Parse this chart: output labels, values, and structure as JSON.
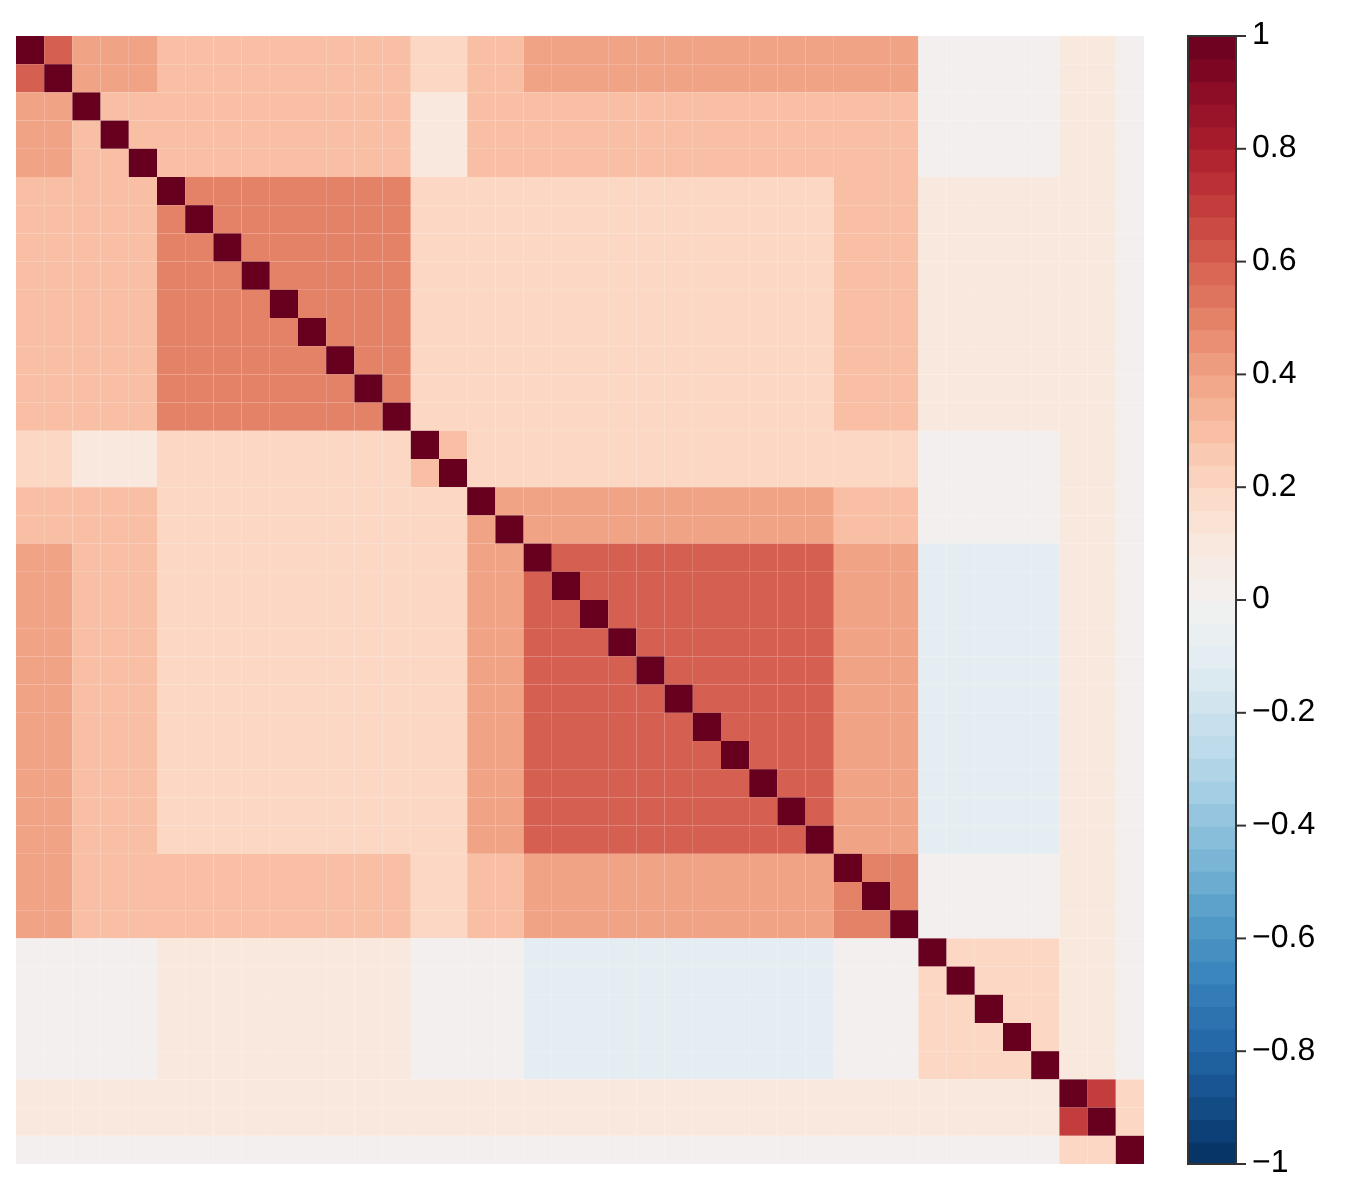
{
  "chart_data": {
    "type": "heatmap",
    "categories": [
      null,
      null,
      null,
      null,
      null,
      null,
      null,
      null,
      null,
      null,
      null,
      null,
      null,
      null,
      null,
      null,
      null,
      null,
      null,
      null,
      null,
      null,
      null,
      null,
      null,
      null,
      null,
      null,
      null,
      null,
      null,
      null,
      null,
      null,
      null,
      null,
      null,
      null,
      null,
      null
    ],
    "y_categories": [
      null,
      null,
      null,
      null,
      null,
      null,
      null,
      null,
      null,
      null,
      null,
      null,
      null,
      null,
      null,
      null,
      null,
      null,
      null,
      null,
      null,
      null,
      null,
      null,
      null,
      null,
      null,
      null,
      null,
      null,
      null,
      null,
      null,
      null,
      null,
      null,
      null,
      null,
      null,
      null
    ],
    "clim": [
      -1,
      1
    ],
    "cticks": [
      1,
      0.8,
      0.6,
      0.4,
      0.2,
      0,
      {
        "value": -0.2,
        "label": "−0.2"
      },
      {
        "value": -0.4,
        "label": "−0.4"
      },
      {
        "value": -0.6,
        "label": "−0.6"
      },
      {
        "value": -0.8,
        "label": "−0.8"
      },
      {
        "value": -1,
        "label": "−1"
      }
    ],
    "cells": [
      [
        1,
        0.6,
        0.4,
        0.4,
        0.4,
        0.3,
        0.3,
        0.3,
        0.3,
        0.3,
        0.3,
        0.3,
        0.3,
        0.3,
        0.2,
        0.2,
        0.3,
        0.3,
        0.4,
        0.4,
        0.4,
        0.4,
        0.4,
        0.4,
        0.4,
        0.4,
        0.4,
        0.4,
        0.4,
        0.4,
        0.4,
        0.4,
        0,
        0,
        0,
        0,
        0,
        0.1,
        0.1,
        0
      ],
      [
        0.6,
        1,
        0.4,
        0.4,
        0.4,
        0.3,
        0.3,
        0.3,
        0.3,
        0.3,
        0.3,
        0.3,
        0.3,
        0.3,
        0.2,
        0.2,
        0.3,
        0.3,
        0.4,
        0.4,
        0.4,
        0.4,
        0.4,
        0.4,
        0.4,
        0.4,
        0.4,
        0.4,
        0.4,
        0.4,
        0.4,
        0.4,
        0,
        0,
        0,
        0,
        0,
        0.1,
        0.1,
        0
      ],
      [
        0.4,
        0.4,
        1,
        0.3,
        0.3,
        0.3,
        0.3,
        0.3,
        0.3,
        0.3,
        0.3,
        0.3,
        0.3,
        0.3,
        0.1,
        0.1,
        0.3,
        0.3,
        0.3,
        0.3,
        0.3,
        0.3,
        0.3,
        0.3,
        0.3,
        0.3,
        0.3,
        0.3,
        0.3,
        0.3,
        0.3,
        0.3,
        0,
        0,
        0,
        0,
        0,
        0.1,
        0.1,
        0
      ],
      [
        0.4,
        0.4,
        0.3,
        1,
        0.3,
        0.3,
        0.3,
        0.3,
        0.3,
        0.3,
        0.3,
        0.3,
        0.3,
        0.3,
        0.1,
        0.1,
        0.3,
        0.3,
        0.3,
        0.3,
        0.3,
        0.3,
        0.3,
        0.3,
        0.3,
        0.3,
        0.3,
        0.3,
        0.3,
        0.3,
        0.3,
        0.3,
        0,
        0,
        0,
        0,
        0,
        0.1,
        0.1,
        0
      ],
      [
        0.4,
        0.4,
        0.3,
        0.3,
        1,
        0.3,
        0.3,
        0.3,
        0.3,
        0.3,
        0.3,
        0.3,
        0.3,
        0.3,
        0.1,
        0.1,
        0.3,
        0.3,
        0.3,
        0.3,
        0.3,
        0.3,
        0.3,
        0.3,
        0.3,
        0.3,
        0.3,
        0.3,
        0.3,
        0.3,
        0.3,
        0.3,
        0,
        0,
        0,
        0,
        0,
        0.1,
        0.1,
        0
      ],
      [
        0.3,
        0.3,
        0.3,
        0.3,
        0.3,
        1,
        0.5,
        0.5,
        0.5,
        0.5,
        0.5,
        0.5,
        0.5,
        0.5,
        0.2,
        0.2,
        0.2,
        0.2,
        0.2,
        0.2,
        0.2,
        0.2,
        0.2,
        0.2,
        0.2,
        0.2,
        0.2,
        0.2,
        0.2,
        0.3,
        0.3,
        0.3,
        0.1,
        0.1,
        0.1,
        0.1,
        0.1,
        0.1,
        0.1,
        0
      ],
      [
        0.3,
        0.3,
        0.3,
        0.3,
        0.3,
        0.5,
        1,
        0.5,
        0.5,
        0.5,
        0.5,
        0.5,
        0.5,
        0.5,
        0.2,
        0.2,
        0.2,
        0.2,
        0.2,
        0.2,
        0.2,
        0.2,
        0.2,
        0.2,
        0.2,
        0.2,
        0.2,
        0.2,
        0.2,
        0.3,
        0.3,
        0.3,
        0.1,
        0.1,
        0.1,
        0.1,
        0.1,
        0.1,
        0.1,
        0
      ],
      [
        0.3,
        0.3,
        0.3,
        0.3,
        0.3,
        0.5,
        0.5,
        1,
        0.5,
        0.5,
        0.5,
        0.5,
        0.5,
        0.5,
        0.2,
        0.2,
        0.2,
        0.2,
        0.2,
        0.2,
        0.2,
        0.2,
        0.2,
        0.2,
        0.2,
        0.2,
        0.2,
        0.2,
        0.2,
        0.3,
        0.3,
        0.3,
        0.1,
        0.1,
        0.1,
        0.1,
        0.1,
        0.1,
        0.1,
        0
      ],
      [
        0.3,
        0.3,
        0.3,
        0.3,
        0.3,
        0.5,
        0.5,
        0.5,
        1,
        0.5,
        0.5,
        0.5,
        0.5,
        0.5,
        0.2,
        0.2,
        0.2,
        0.2,
        0.2,
        0.2,
        0.2,
        0.2,
        0.2,
        0.2,
        0.2,
        0.2,
        0.2,
        0.2,
        0.2,
        0.3,
        0.3,
        0.3,
        0.1,
        0.1,
        0.1,
        0.1,
        0.1,
        0.1,
        0.1,
        0
      ],
      [
        0.3,
        0.3,
        0.3,
        0.3,
        0.3,
        0.5,
        0.5,
        0.5,
        0.5,
        1,
        0.5,
        0.5,
        0.5,
        0.5,
        0.2,
        0.2,
        0.2,
        0.2,
        0.2,
        0.2,
        0.2,
        0.2,
        0.2,
        0.2,
        0.2,
        0.2,
        0.2,
        0.2,
        0.2,
        0.3,
        0.3,
        0.3,
        0.1,
        0.1,
        0.1,
        0.1,
        0.1,
        0.1,
        0.1,
        0
      ],
      [
        0.3,
        0.3,
        0.3,
        0.3,
        0.3,
        0.5,
        0.5,
        0.5,
        0.5,
        0.5,
        1,
        0.5,
        0.5,
        0.5,
        0.2,
        0.2,
        0.2,
        0.2,
        0.2,
        0.2,
        0.2,
        0.2,
        0.2,
        0.2,
        0.2,
        0.2,
        0.2,
        0.2,
        0.2,
        0.3,
        0.3,
        0.3,
        0.1,
        0.1,
        0.1,
        0.1,
        0.1,
        0.1,
        0.1,
        0
      ],
      [
        0.3,
        0.3,
        0.3,
        0.3,
        0.3,
        0.5,
        0.5,
        0.5,
        0.5,
        0.5,
        0.5,
        1,
        0.5,
        0.5,
        0.2,
        0.2,
        0.2,
        0.2,
        0.2,
        0.2,
        0.2,
        0.2,
        0.2,
        0.2,
        0.2,
        0.2,
        0.2,
        0.2,
        0.2,
        0.3,
        0.3,
        0.3,
        0.1,
        0.1,
        0.1,
        0.1,
        0.1,
        0.1,
        0.1,
        0
      ],
      [
        0.3,
        0.3,
        0.3,
        0.3,
        0.3,
        0.5,
        0.5,
        0.5,
        0.5,
        0.5,
        0.5,
        0.5,
        1,
        0.5,
        0.2,
        0.2,
        0.2,
        0.2,
        0.2,
        0.2,
        0.2,
        0.2,
        0.2,
        0.2,
        0.2,
        0.2,
        0.2,
        0.2,
        0.2,
        0.3,
        0.3,
        0.3,
        0.1,
        0.1,
        0.1,
        0.1,
        0.1,
        0.1,
        0.1,
        0
      ],
      [
        0.3,
        0.3,
        0.3,
        0.3,
        0.3,
        0.5,
        0.5,
        0.5,
        0.5,
        0.5,
        0.5,
        0.5,
        0.5,
        1,
        0.2,
        0.2,
        0.2,
        0.2,
        0.2,
        0.2,
        0.2,
        0.2,
        0.2,
        0.2,
        0.2,
        0.2,
        0.2,
        0.2,
        0.2,
        0.3,
        0.3,
        0.3,
        0.1,
        0.1,
        0.1,
        0.1,
        0.1,
        0.1,
        0.1,
        0
      ],
      [
        0.2,
        0.2,
        0.1,
        0.1,
        0.1,
        0.2,
        0.2,
        0.2,
        0.2,
        0.2,
        0.2,
        0.2,
        0.2,
        0.2,
        1,
        0.3,
        0.2,
        0.2,
        0.2,
        0.2,
        0.2,
        0.2,
        0.2,
        0.2,
        0.2,
        0.2,
        0.2,
        0.2,
        0.2,
        0.2,
        0.2,
        0.2,
        0,
        0,
        0,
        0,
        0,
        0.1,
        0.1,
        0
      ],
      [
        0.2,
        0.2,
        0.1,
        0.1,
        0.1,
        0.2,
        0.2,
        0.2,
        0.2,
        0.2,
        0.2,
        0.2,
        0.2,
        0.2,
        0.3,
        1,
        0.2,
        0.2,
        0.2,
        0.2,
        0.2,
        0.2,
        0.2,
        0.2,
        0.2,
        0.2,
        0.2,
        0.2,
        0.2,
        0.2,
        0.2,
        0.2,
        0,
        0,
        0,
        0,
        0,
        0.1,
        0.1,
        0
      ],
      [
        0.3,
        0.3,
        0.3,
        0.3,
        0.3,
        0.2,
        0.2,
        0.2,
        0.2,
        0.2,
        0.2,
        0.2,
        0.2,
        0.2,
        0.2,
        0.2,
        1,
        0.4,
        0.4,
        0.4,
        0.4,
        0.4,
        0.4,
        0.4,
        0.4,
        0.4,
        0.4,
        0.4,
        0.4,
        0.3,
        0.3,
        0.3,
        0,
        0,
        0,
        0,
        0,
        0.1,
        0.1,
        0
      ],
      [
        0.3,
        0.3,
        0.3,
        0.3,
        0.3,
        0.2,
        0.2,
        0.2,
        0.2,
        0.2,
        0.2,
        0.2,
        0.2,
        0.2,
        0.2,
        0.2,
        0.4,
        1,
        0.4,
        0.4,
        0.4,
        0.4,
        0.4,
        0.4,
        0.4,
        0.4,
        0.4,
        0.4,
        0.4,
        0.3,
        0.3,
        0.3,
        0,
        0,
        0,
        0,
        0,
        0.1,
        0.1,
        0
      ],
      [
        0.4,
        0.4,
        0.3,
        0.3,
        0.3,
        0.2,
        0.2,
        0.2,
        0.2,
        0.2,
        0.2,
        0.2,
        0.2,
        0.2,
        0.2,
        0.2,
        0.4,
        0.4,
        1,
        0.6,
        0.6,
        0.6,
        0.6,
        0.6,
        0.6,
        0.6,
        0.6,
        0.6,
        0.6,
        0.4,
        0.4,
        0.4,
        -0.1,
        -0.1,
        -0.1,
        -0.1,
        -0.1,
        0.1,
        0.1,
        0
      ],
      [
        0.4,
        0.4,
        0.3,
        0.3,
        0.3,
        0.2,
        0.2,
        0.2,
        0.2,
        0.2,
        0.2,
        0.2,
        0.2,
        0.2,
        0.2,
        0.2,
        0.4,
        0.4,
        0.6,
        1,
        0.6,
        0.6,
        0.6,
        0.6,
        0.6,
        0.6,
        0.6,
        0.6,
        0.6,
        0.4,
        0.4,
        0.4,
        -0.1,
        -0.1,
        -0.1,
        -0.1,
        -0.1,
        0.1,
        0.1,
        0
      ],
      [
        0.4,
        0.4,
        0.3,
        0.3,
        0.3,
        0.2,
        0.2,
        0.2,
        0.2,
        0.2,
        0.2,
        0.2,
        0.2,
        0.2,
        0.2,
        0.2,
        0.4,
        0.4,
        0.6,
        0.6,
        1,
        0.6,
        0.6,
        0.6,
        0.6,
        0.6,
        0.6,
        0.6,
        0.6,
        0.4,
        0.4,
        0.4,
        -0.1,
        -0.1,
        -0.1,
        -0.1,
        -0.1,
        0.1,
        0.1,
        0
      ],
      [
        0.4,
        0.4,
        0.3,
        0.3,
        0.3,
        0.2,
        0.2,
        0.2,
        0.2,
        0.2,
        0.2,
        0.2,
        0.2,
        0.2,
        0.2,
        0.2,
        0.4,
        0.4,
        0.6,
        0.6,
        0.6,
        1,
        0.6,
        0.6,
        0.6,
        0.6,
        0.6,
        0.6,
        0.6,
        0.4,
        0.4,
        0.4,
        -0.1,
        -0.1,
        -0.1,
        -0.1,
        -0.1,
        0.1,
        0.1,
        0
      ],
      [
        0.4,
        0.4,
        0.3,
        0.3,
        0.3,
        0.2,
        0.2,
        0.2,
        0.2,
        0.2,
        0.2,
        0.2,
        0.2,
        0.2,
        0.2,
        0.2,
        0.4,
        0.4,
        0.6,
        0.6,
        0.6,
        0.6,
        1,
        0.6,
        0.6,
        0.6,
        0.6,
        0.6,
        0.6,
        0.4,
        0.4,
        0.4,
        -0.1,
        -0.1,
        -0.1,
        -0.1,
        -0.1,
        0.1,
        0.1,
        0
      ],
      [
        0.4,
        0.4,
        0.3,
        0.3,
        0.3,
        0.2,
        0.2,
        0.2,
        0.2,
        0.2,
        0.2,
        0.2,
        0.2,
        0.2,
        0.2,
        0.2,
        0.4,
        0.4,
        0.6,
        0.6,
        0.6,
        0.6,
        0.6,
        1,
        0.6,
        0.6,
        0.6,
        0.6,
        0.6,
        0.4,
        0.4,
        0.4,
        -0.1,
        -0.1,
        -0.1,
        -0.1,
        -0.1,
        0.1,
        0.1,
        0
      ],
      [
        0.4,
        0.4,
        0.3,
        0.3,
        0.3,
        0.2,
        0.2,
        0.2,
        0.2,
        0.2,
        0.2,
        0.2,
        0.2,
        0.2,
        0.2,
        0.2,
        0.4,
        0.4,
        0.6,
        0.6,
        0.6,
        0.6,
        0.6,
        0.6,
        1,
        0.6,
        0.6,
        0.6,
        0.6,
        0.4,
        0.4,
        0.4,
        -0.1,
        -0.1,
        -0.1,
        -0.1,
        -0.1,
        0.1,
        0.1,
        0
      ],
      [
        0.4,
        0.4,
        0.3,
        0.3,
        0.3,
        0.2,
        0.2,
        0.2,
        0.2,
        0.2,
        0.2,
        0.2,
        0.2,
        0.2,
        0.2,
        0.2,
        0.4,
        0.4,
        0.6,
        0.6,
        0.6,
        0.6,
        0.6,
        0.6,
        0.6,
        1,
        0.6,
        0.6,
        0.6,
        0.4,
        0.4,
        0.4,
        -0.1,
        -0.1,
        -0.1,
        -0.1,
        -0.1,
        0.1,
        0.1,
        0
      ],
      [
        0.4,
        0.4,
        0.3,
        0.3,
        0.3,
        0.2,
        0.2,
        0.2,
        0.2,
        0.2,
        0.2,
        0.2,
        0.2,
        0.2,
        0.2,
        0.2,
        0.4,
        0.4,
        0.6,
        0.6,
        0.6,
        0.6,
        0.6,
        0.6,
        0.6,
        0.6,
        1,
        0.6,
        0.6,
        0.4,
        0.4,
        0.4,
        -0.1,
        -0.1,
        -0.1,
        -0.1,
        -0.1,
        0.1,
        0.1,
        0
      ],
      [
        0.4,
        0.4,
        0.3,
        0.3,
        0.3,
        0.2,
        0.2,
        0.2,
        0.2,
        0.2,
        0.2,
        0.2,
        0.2,
        0.2,
        0.2,
        0.2,
        0.4,
        0.4,
        0.6,
        0.6,
        0.6,
        0.6,
        0.6,
        0.6,
        0.6,
        0.6,
        0.6,
        1,
        0.6,
        0.4,
        0.4,
        0.4,
        -0.1,
        -0.1,
        -0.1,
        -0.1,
        -0.1,
        0.1,
        0.1,
        0
      ],
      [
        0.4,
        0.4,
        0.3,
        0.3,
        0.3,
        0.2,
        0.2,
        0.2,
        0.2,
        0.2,
        0.2,
        0.2,
        0.2,
        0.2,
        0.2,
        0.2,
        0.4,
        0.4,
        0.6,
        0.6,
        0.6,
        0.6,
        0.6,
        0.6,
        0.6,
        0.6,
        0.6,
        0.6,
        1,
        0.4,
        0.4,
        0.4,
        -0.1,
        -0.1,
        -0.1,
        -0.1,
        -0.1,
        0.1,
        0.1,
        0
      ],
      [
        0.4,
        0.4,
        0.3,
        0.3,
        0.3,
        0.3,
        0.3,
        0.3,
        0.3,
        0.3,
        0.3,
        0.3,
        0.3,
        0.3,
        0.2,
        0.2,
        0.3,
        0.3,
        0.4,
        0.4,
        0.4,
        0.4,
        0.4,
        0.4,
        0.4,
        0.4,
        0.4,
        0.4,
        0.4,
        1,
        0.5,
        0.5,
        0,
        0,
        0,
        0,
        0,
        0.1,
        0.1,
        0
      ],
      [
        0.4,
        0.4,
        0.3,
        0.3,
        0.3,
        0.3,
        0.3,
        0.3,
        0.3,
        0.3,
        0.3,
        0.3,
        0.3,
        0.3,
        0.2,
        0.2,
        0.3,
        0.3,
        0.4,
        0.4,
        0.4,
        0.4,
        0.4,
        0.4,
        0.4,
        0.4,
        0.4,
        0.4,
        0.4,
        0.5,
        1,
        0.5,
        0,
        0,
        0,
        0,
        0,
        0.1,
        0.1,
        0
      ],
      [
        0.4,
        0.4,
        0.3,
        0.3,
        0.3,
        0.3,
        0.3,
        0.3,
        0.3,
        0.3,
        0.3,
        0.3,
        0.3,
        0.3,
        0.2,
        0.2,
        0.3,
        0.3,
        0.4,
        0.4,
        0.4,
        0.4,
        0.4,
        0.4,
        0.4,
        0.4,
        0.4,
        0.4,
        0.4,
        0.5,
        0.5,
        1,
        0,
        0,
        0,
        0,
        0,
        0.1,
        0.1,
        0
      ],
      [
        0,
        0,
        0,
        0,
        0,
        0.1,
        0.1,
        0.1,
        0.1,
        0.1,
        0.1,
        0.1,
        0.1,
        0.1,
        0,
        0,
        0,
        0,
        -0.1,
        -0.1,
        -0.1,
        -0.1,
        -0.1,
        -0.1,
        -0.1,
        -0.1,
        -0.1,
        -0.1,
        -0.1,
        0,
        0,
        0,
        1,
        0.2,
        0.2,
        0.2,
        0.2,
        0.1,
        0.1,
        0
      ],
      [
        0,
        0,
        0,
        0,
        0,
        0.1,
        0.1,
        0.1,
        0.1,
        0.1,
        0.1,
        0.1,
        0.1,
        0.1,
        0,
        0,
        0,
        0,
        -0.1,
        -0.1,
        -0.1,
        -0.1,
        -0.1,
        -0.1,
        -0.1,
        -0.1,
        -0.1,
        -0.1,
        -0.1,
        0,
        0,
        0,
        0.2,
        1,
        0.2,
        0.2,
        0.2,
        0.1,
        0.1,
        0
      ],
      [
        0,
        0,
        0,
        0,
        0,
        0.1,
        0.1,
        0.1,
        0.1,
        0.1,
        0.1,
        0.1,
        0.1,
        0.1,
        0,
        0,
        0,
        0,
        -0.1,
        -0.1,
        -0.1,
        -0.1,
        -0.1,
        -0.1,
        -0.1,
        -0.1,
        -0.1,
        -0.1,
        -0.1,
        0,
        0,
        0,
        0.2,
        0.2,
        1,
        0.2,
        0.2,
        0.1,
        0.1,
        0
      ],
      [
        0,
        0,
        0,
        0,
        0,
        0.1,
        0.1,
        0.1,
        0.1,
        0.1,
        0.1,
        0.1,
        0.1,
        0.1,
        0,
        0,
        0,
        0,
        -0.1,
        -0.1,
        -0.1,
        -0.1,
        -0.1,
        -0.1,
        -0.1,
        -0.1,
        -0.1,
        -0.1,
        -0.1,
        0,
        0,
        0,
        0.2,
        0.2,
        0.2,
        1,
        0.2,
        0.1,
        0.1,
        0
      ],
      [
        0,
        0,
        0,
        0,
        0,
        0.1,
        0.1,
        0.1,
        0.1,
        0.1,
        0.1,
        0.1,
        0.1,
        0.1,
        0,
        0,
        0,
        0,
        -0.1,
        -0.1,
        -0.1,
        -0.1,
        -0.1,
        -0.1,
        -0.1,
        -0.1,
        -0.1,
        -0.1,
        -0.1,
        0,
        0,
        0,
        0.2,
        0.2,
        0.2,
        0.2,
        1,
        0.1,
        0.1,
        0
      ],
      [
        0.1,
        0.1,
        0.1,
        0.1,
        0.1,
        0.1,
        0.1,
        0.1,
        0.1,
        0.1,
        0.1,
        0.1,
        0.1,
        0.1,
        0.1,
        0.1,
        0.1,
        0.1,
        0.1,
        0.1,
        0.1,
        0.1,
        0.1,
        0.1,
        0.1,
        0.1,
        0.1,
        0.1,
        0.1,
        0.1,
        0.1,
        0.1,
        0.1,
        0.1,
        0.1,
        0.1,
        0.1,
        1,
        0.7,
        0.2
      ],
      [
        0.1,
        0.1,
        0.1,
        0.1,
        0.1,
        0.1,
        0.1,
        0.1,
        0.1,
        0.1,
        0.1,
        0.1,
        0.1,
        0.1,
        0.1,
        0.1,
        0.1,
        0.1,
        0.1,
        0.1,
        0.1,
        0.1,
        0.1,
        0.1,
        0.1,
        0.1,
        0.1,
        0.1,
        0.1,
        0.1,
        0.1,
        0.1,
        0.1,
        0.1,
        0.1,
        0.1,
        0.1,
        0.7,
        1,
        0.2
      ],
      [
        0,
        0,
        0,
        0,
        0,
        0,
        0,
        0,
        0,
        0,
        0,
        0,
        0,
        0,
        0,
        0,
        0,
        0,
        0,
        0,
        0,
        0,
        0,
        0,
        0,
        0,
        0,
        0,
        0,
        0,
        0,
        0,
        0,
        0,
        0,
        0,
        0,
        0.2,
        0.2,
        1
      ]
    ]
  }
}
